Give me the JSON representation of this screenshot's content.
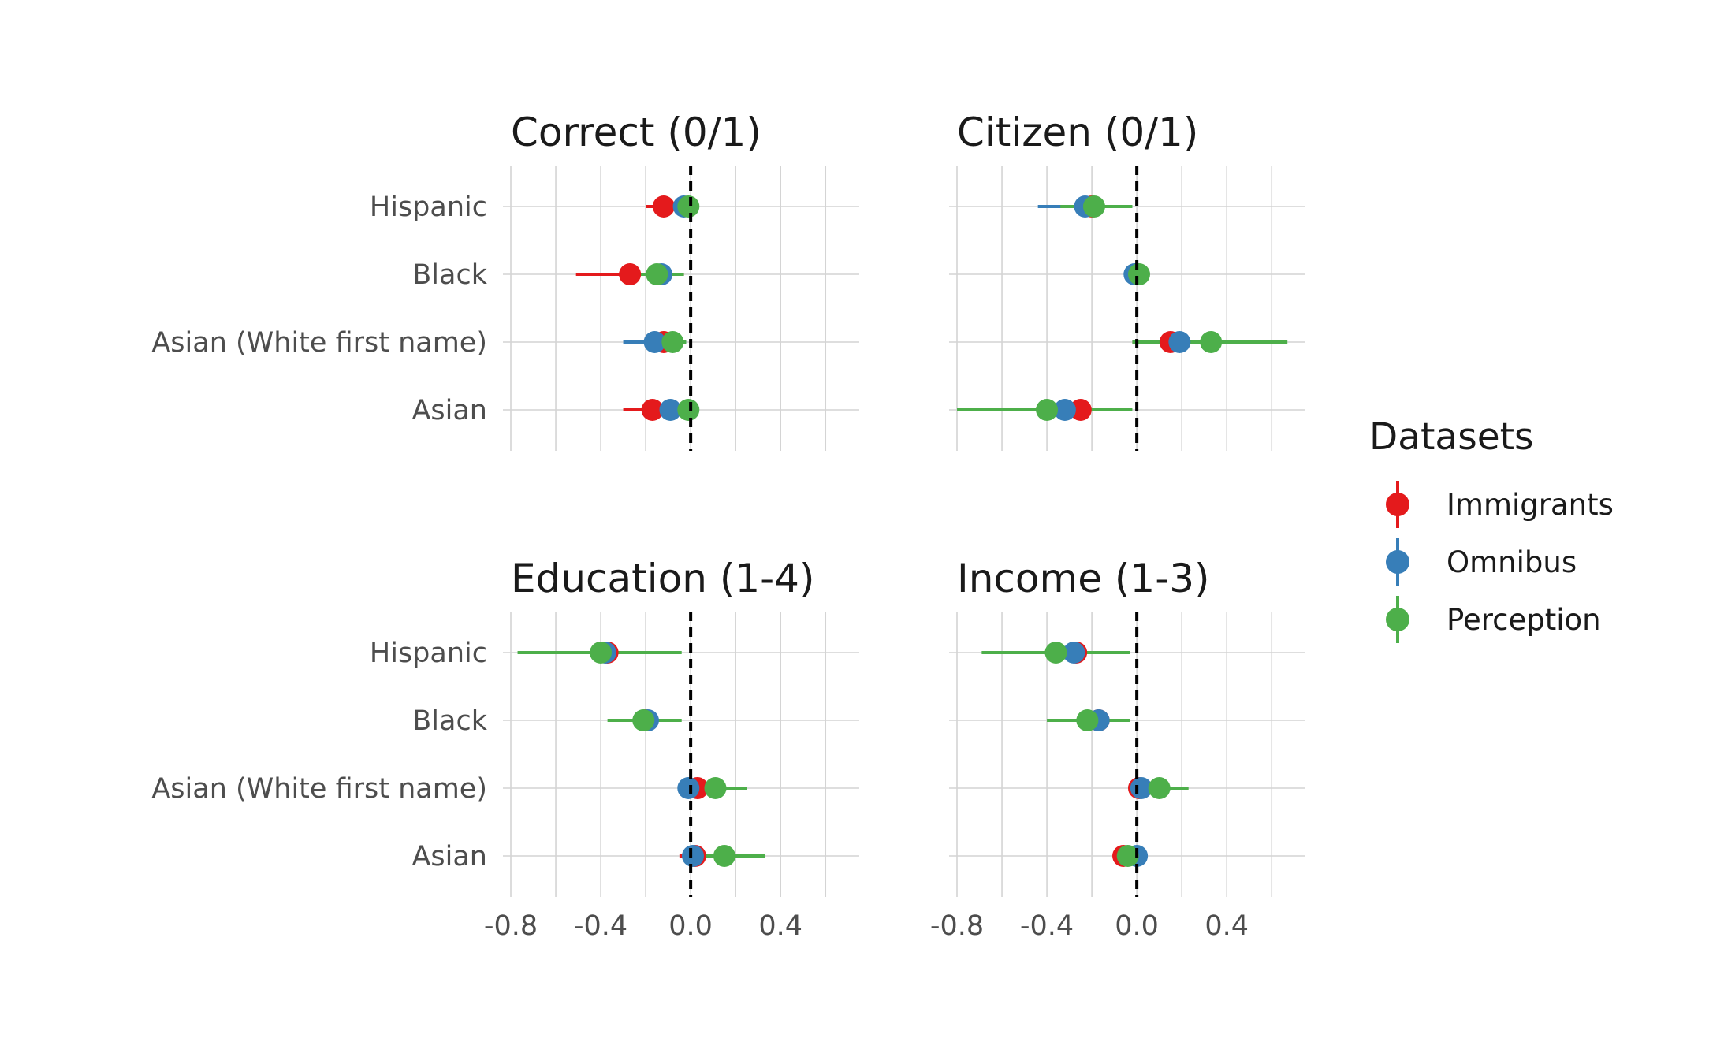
{
  "chart_data": {
    "type": "scatter",
    "categories": [
      "Hispanic",
      "Black",
      "Asian (White first name)",
      "Asian"
    ],
    "x_ticks": [
      -0.8,
      -0.4,
      0.0,
      0.4
    ],
    "x_tick_labels": [
      "-0.8",
      "-0.4",
      "0.0",
      "0.4"
    ],
    "legend": {
      "title": "Datasets",
      "placement": "right",
      "entries": [
        {
          "name": "Immigrants",
          "color": "#E41A1C"
        },
        {
          "name": "Omnibus",
          "color": "#377EB8"
        },
        {
          "name": "Perception",
          "color": "#4DAF4A"
        }
      ]
    },
    "reference_line": {
      "x": 0,
      "style": "dashed",
      "color": "#000000"
    },
    "panels": [
      {
        "title": "Correct (0/1)",
        "xlim": [
          -0.8,
          0.75
        ],
        "series": [
          {
            "name": "Immigrants",
            "points": [
              {
                "category": "Hispanic",
                "estimate": -0.12,
                "low": -0.2,
                "high": -0.04
              },
              {
                "category": "Black",
                "estimate": -0.27,
                "low": -0.51,
                "high": -0.03
              },
              {
                "category": "Asian (White first name)",
                "estimate": -0.12,
                "low": -0.2,
                "high": -0.04
              },
              {
                "category": "Asian",
                "estimate": -0.17,
                "low": -0.3,
                "high": -0.04
              }
            ]
          },
          {
            "name": "Omnibus",
            "points": [
              {
                "category": "Hispanic",
                "estimate": -0.03,
                "low": -0.06,
                "high": 0.01
              },
              {
                "category": "Black",
                "estimate": -0.13,
                "low": -0.21,
                "high": -0.05
              },
              {
                "category": "Asian (White first name)",
                "estimate": -0.16,
                "low": -0.3,
                "high": -0.02
              },
              {
                "category": "Asian",
                "estimate": -0.09,
                "low": -0.18,
                "high": 0.0
              }
            ]
          },
          {
            "name": "Perception",
            "points": [
              {
                "category": "Hispanic",
                "estimate": -0.01,
                "low": -0.05,
                "high": 0.03
              },
              {
                "category": "Black",
                "estimate": -0.15,
                "low": -0.25,
                "high": -0.03
              },
              {
                "category": "Asian (White first name)",
                "estimate": -0.08,
                "low": -0.14,
                "high": -0.02
              },
              {
                "category": "Asian",
                "estimate": -0.01,
                "low": -0.05,
                "high": 0.03
              }
            ]
          }
        ]
      },
      {
        "title": "Citizen (0/1)",
        "xlim": [
          -0.8,
          0.75
        ],
        "series": [
          {
            "name": "Immigrants",
            "points": [
              {
                "category": "Hispanic",
                "estimate": -0.2,
                "low": -0.32,
                "high": -0.08
              },
              {
                "category": "Black",
                "estimate": 0.0,
                "low": -0.02,
                "high": 0.02
              },
              {
                "category": "Asian (White first name)",
                "estimate": 0.15,
                "low": -0.02,
                "high": 0.32
              },
              {
                "category": "Asian",
                "estimate": -0.25,
                "low": -0.4,
                "high": -0.1
              }
            ]
          },
          {
            "name": "Omnibus",
            "points": [
              {
                "category": "Hispanic",
                "estimate": -0.23,
                "low": -0.44,
                "high": -0.02
              },
              {
                "category": "Black",
                "estimate": -0.01,
                "low": -0.03,
                "high": 0.01
              },
              {
                "category": "Asian (White first name)",
                "estimate": 0.19,
                "low": 0.02,
                "high": 0.36
              },
              {
                "category": "Asian",
                "estimate": -0.32,
                "low": -0.6,
                "high": -0.04
              }
            ]
          },
          {
            "name": "Perception",
            "points": [
              {
                "category": "Hispanic",
                "estimate": -0.19,
                "low": -0.34,
                "high": -0.02
              },
              {
                "category": "Black",
                "estimate": 0.01,
                "low": -0.02,
                "high": 0.04
              },
              {
                "category": "Asian (White first name)",
                "estimate": 0.33,
                "low": -0.02,
                "high": 0.67
              },
              {
                "category": "Asian",
                "estimate": -0.4,
                "low": -0.8,
                "high": -0.02
              }
            ]
          }
        ]
      },
      {
        "title": "Education (1-4)",
        "xlim": [
          -0.8,
          0.75
        ],
        "series": [
          {
            "name": "Immigrants",
            "points": [
              {
                "category": "Hispanic",
                "estimate": -0.37,
                "low": -0.6,
                "high": -0.14
              },
              {
                "category": "Black",
                "estimate": -0.2,
                "low": -0.3,
                "high": -0.1
              },
              {
                "category": "Asian (White first name)",
                "estimate": 0.03,
                "low": -0.03,
                "high": 0.09
              },
              {
                "category": "Asian",
                "estimate": 0.02,
                "low": -0.05,
                "high": 0.09
              }
            ]
          },
          {
            "name": "Omnibus",
            "points": [
              {
                "category": "Hispanic",
                "estimate": -0.38,
                "low": -0.6,
                "high": -0.16
              },
              {
                "category": "Black",
                "estimate": -0.19,
                "low": -0.29,
                "high": -0.09
              },
              {
                "category": "Asian (White first name)",
                "estimate": -0.01,
                "low": -0.05,
                "high": 0.03
              },
              {
                "category": "Asian",
                "estimate": 0.01,
                "low": -0.03,
                "high": 0.05
              }
            ]
          },
          {
            "name": "Perception",
            "points": [
              {
                "category": "Hispanic",
                "estimate": -0.4,
                "low": -0.77,
                "high": -0.04
              },
              {
                "category": "Black",
                "estimate": -0.21,
                "low": -0.37,
                "high": -0.04
              },
              {
                "category": "Asian (White first name)",
                "estimate": 0.11,
                "low": -0.03,
                "high": 0.25
              },
              {
                "category": "Asian",
                "estimate": 0.15,
                "low": -0.02,
                "high": 0.33
              }
            ]
          }
        ]
      },
      {
        "title": "Income (1-3)",
        "xlim": [
          -0.8,
          0.75
        ],
        "series": [
          {
            "name": "Immigrants",
            "points": [
              {
                "category": "Hispanic",
                "estimate": -0.27,
                "low": -0.45,
                "high": -0.09
              },
              {
                "category": "Black",
                "estimate": -0.17,
                "low": -0.27,
                "high": -0.07
              },
              {
                "category": "Asian (White first name)",
                "estimate": 0.01,
                "low": -0.03,
                "high": 0.05
              },
              {
                "category": "Asian",
                "estimate": -0.06,
                "low": -0.1,
                "high": -0.02
              }
            ]
          },
          {
            "name": "Omnibus",
            "points": [
              {
                "category": "Hispanic",
                "estimate": -0.28,
                "low": -0.55,
                "high": -0.03
              },
              {
                "category": "Black",
                "estimate": -0.17,
                "low": -0.3,
                "high": -0.04
              },
              {
                "category": "Asian (White first name)",
                "estimate": 0.02,
                "low": -0.02,
                "high": 0.06
              },
              {
                "category": "Asian",
                "estimate": 0.0,
                "low": -0.03,
                "high": 0.03
              }
            ]
          },
          {
            "name": "Perception",
            "points": [
              {
                "category": "Hispanic",
                "estimate": -0.36,
                "low": -0.69,
                "high": -0.03
              },
              {
                "category": "Black",
                "estimate": -0.22,
                "low": -0.4,
                "high": -0.03
              },
              {
                "category": "Asian (White first name)",
                "estimate": 0.1,
                "low": -0.03,
                "high": 0.23
              },
              {
                "category": "Asian",
                "estimate": -0.04,
                "low": -0.09,
                "high": 0.01
              }
            ]
          }
        ]
      }
    ]
  }
}
